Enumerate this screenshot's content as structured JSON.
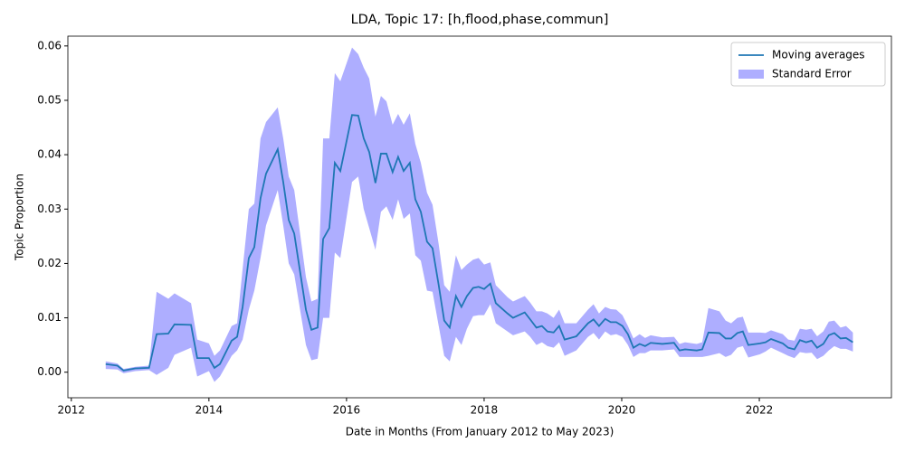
{
  "chart_data": {
    "type": "line_band",
    "title": "LDA, Topic 17: [h,flood,phase,commun]",
    "xlabel": "Date in Months (From January 2012 to May 2023)",
    "ylabel": "Topic Proportion",
    "legend": "upper right",
    "x": [
      2012.5,
      2012.67,
      2012.76,
      2012.93,
      2013.13,
      2013.24,
      2013.41,
      2013.5,
      2013.74,
      2013.83,
      2014.0,
      2014.08,
      2014.16,
      2014.33,
      2014.41,
      2014.49,
      2014.58,
      2014.66,
      2014.75,
      2014.83,
      2015.0,
      2015.08,
      2015.16,
      2015.24,
      2015.41,
      2015.49,
      2015.58,
      2015.66,
      2015.75,
      2015.83,
      2015.91,
      2016.08,
      2016.17,
      2016.25,
      2016.33,
      2016.42,
      2016.5,
      2016.58,
      2016.67,
      2016.75,
      2016.83,
      2016.92,
      2017.0,
      2017.08,
      2017.17,
      2017.25,
      2017.34,
      2017.42,
      2017.5,
      2017.59,
      2017.67,
      2017.75,
      2017.84,
      2017.92,
      2018.0,
      2018.09,
      2018.17,
      2018.34,
      2018.42,
      2018.59,
      2018.67,
      2018.76,
      2018.84,
      2018.92,
      2019.01,
      2019.09,
      2019.17,
      2019.34,
      2019.51,
      2019.59,
      2019.67,
      2019.76,
      2019.84,
      2019.92,
      2020.01,
      2020.09,
      2020.17,
      2020.26,
      2020.34,
      2020.42,
      2020.59,
      2020.76,
      2020.84,
      2020.92,
      2021.09,
      2021.17,
      2021.26,
      2021.42,
      2021.51,
      2021.59,
      2021.68,
      2021.76,
      2021.84,
      2022.01,
      2022.09,
      2022.17,
      2022.34,
      2022.42,
      2022.51,
      2022.59,
      2022.68,
      2022.76,
      2022.84,
      2022.93,
      2023.01,
      2023.09,
      2023.18,
      2023.26,
      2023.36
    ],
    "series": [
      {
        "name": "Moving averages",
        "color": "#1f77b4",
        "values": [
          0.0015,
          0.0012,
          0.0003,
          0.0007,
          0.0008,
          0.007,
          0.0071,
          0.0088,
          0.0087,
          0.0026,
          0.0026,
          0.0008,
          0.0015,
          0.0058,
          0.0065,
          0.012,
          0.021,
          0.023,
          0.032,
          0.0365,
          0.041,
          0.035,
          0.028,
          0.0255,
          0.0115,
          0.0078,
          0.0082,
          0.0245,
          0.0265,
          0.0385,
          0.037,
          0.0473,
          0.0472,
          0.043,
          0.0405,
          0.0348,
          0.0402,
          0.0402,
          0.0368,
          0.0396,
          0.037,
          0.0385,
          0.0318,
          0.0295,
          0.024,
          0.0228,
          0.016,
          0.0095,
          0.0082,
          0.014,
          0.012,
          0.014,
          0.0155,
          0.0157,
          0.0153,
          0.0163,
          0.0127,
          0.0108,
          0.01,
          0.011,
          0.0097,
          0.0082,
          0.0085,
          0.0075,
          0.0073,
          0.0085,
          0.006,
          0.0066,
          0.009,
          0.0097,
          0.0085,
          0.0098,
          0.0092,
          0.0092,
          0.0085,
          0.007,
          0.0045,
          0.0052,
          0.0048,
          0.0054,
          0.0052,
          0.0054,
          0.004,
          0.0042,
          0.004,
          0.0042,
          0.0073,
          0.0072,
          0.0062,
          0.0062,
          0.0072,
          0.0075,
          0.005,
          0.0053,
          0.0055,
          0.0061,
          0.0053,
          0.0045,
          0.0042,
          0.0059,
          0.0055,
          0.0058,
          0.0045,
          0.0052,
          0.0068,
          0.0072,
          0.0062,
          0.0063,
          0.0055
        ]
      }
    ],
    "band": {
      "name": "Standard Error",
      "color": "#aeaeff",
      "lower": [
        0.0006,
        0.0005,
        -0.0002,
        0.0002,
        0.0004,
        -0.0005,
        0.0008,
        0.0032,
        0.0045,
        -0.0008,
        0.0002,
        -0.0018,
        -0.0008,
        0.003,
        0.004,
        0.006,
        0.0115,
        0.015,
        0.021,
        0.027,
        0.0335,
        0.027,
        0.02,
        0.018,
        0.005,
        0.0022,
        0.0025,
        0.01,
        0.01,
        0.022,
        0.021,
        0.035,
        0.036,
        0.03,
        0.0265,
        0.0225,
        0.0295,
        0.0305,
        0.028,
        0.0318,
        0.0282,
        0.0292,
        0.0215,
        0.0205,
        0.015,
        0.0148,
        0.0085,
        0.003,
        0.002,
        0.0065,
        0.005,
        0.008,
        0.0103,
        0.0105,
        0.0105,
        0.0125,
        0.009,
        0.0075,
        0.0068,
        0.0075,
        0.0065,
        0.005,
        0.0055,
        0.0048,
        0.0045,
        0.0055,
        0.003,
        0.004,
        0.0065,
        0.0072,
        0.006,
        0.0075,
        0.0068,
        0.007,
        0.0065,
        0.005,
        0.0028,
        0.0035,
        0.0035,
        0.004,
        0.004,
        0.0042,
        0.0028,
        0.0028,
        0.0028,
        0.0028,
        0.003,
        0.0035,
        0.0028,
        0.0032,
        0.0045,
        0.0048,
        0.0027,
        0.0033,
        0.0038,
        0.0045,
        0.0035,
        0.003,
        0.0026,
        0.0037,
        0.0035,
        0.0036,
        0.0024,
        0.003,
        0.004,
        0.0048,
        0.0043,
        0.0043,
        0.0038
      ],
      "upper": [
        0.002,
        0.0016,
        0.0006,
        0.001,
        0.0012,
        0.0148,
        0.0135,
        0.0145,
        0.0127,
        0.006,
        0.0053,
        0.003,
        0.004,
        0.0085,
        0.009,
        0.019,
        0.03,
        0.031,
        0.043,
        0.046,
        0.0487,
        0.043,
        0.036,
        0.0335,
        0.0175,
        0.013,
        0.0135,
        0.043,
        0.043,
        0.055,
        0.0535,
        0.0597,
        0.0585,
        0.056,
        0.054,
        0.047,
        0.0508,
        0.0498,
        0.0455,
        0.0475,
        0.0455,
        0.0476,
        0.042,
        0.0385,
        0.033,
        0.0308,
        0.0235,
        0.016,
        0.0148,
        0.0215,
        0.0188,
        0.0198,
        0.0207,
        0.021,
        0.0198,
        0.0202,
        0.016,
        0.0138,
        0.013,
        0.014,
        0.0128,
        0.0112,
        0.0112,
        0.0108,
        0.01,
        0.0115,
        0.009,
        0.009,
        0.0115,
        0.0125,
        0.0108,
        0.012,
        0.0116,
        0.0115,
        0.0105,
        0.0085,
        0.0062,
        0.007,
        0.0063,
        0.0068,
        0.0064,
        0.0065,
        0.0052,
        0.0055,
        0.0052,
        0.0055,
        0.0118,
        0.0112,
        0.0095,
        0.009,
        0.01,
        0.0102,
        0.0073,
        0.0073,
        0.0072,
        0.0077,
        0.007,
        0.006,
        0.0058,
        0.008,
        0.0078,
        0.008,
        0.0066,
        0.0075,
        0.0093,
        0.0095,
        0.0082,
        0.0085,
        0.0073
      ]
    },
    "xlim": [
      2011.95,
      2023.92
    ],
    "ylim": [
      -0.0047,
      0.0618
    ],
    "xticks": [
      2012,
      2014,
      2016,
      2018,
      2020,
      2022
    ],
    "yticks": [
      {
        "value": 0,
        "label": "0.00"
      },
      {
        "value": 0.01,
        "label": "0.01"
      },
      {
        "value": 0.02,
        "label": "0.02"
      },
      {
        "value": 0.03,
        "label": "0.03"
      },
      {
        "value": 0.04,
        "label": "0.04"
      },
      {
        "value": 0.05,
        "label": "0.05"
      },
      {
        "value": 0.06,
        "label": "0.06"
      }
    ]
  }
}
